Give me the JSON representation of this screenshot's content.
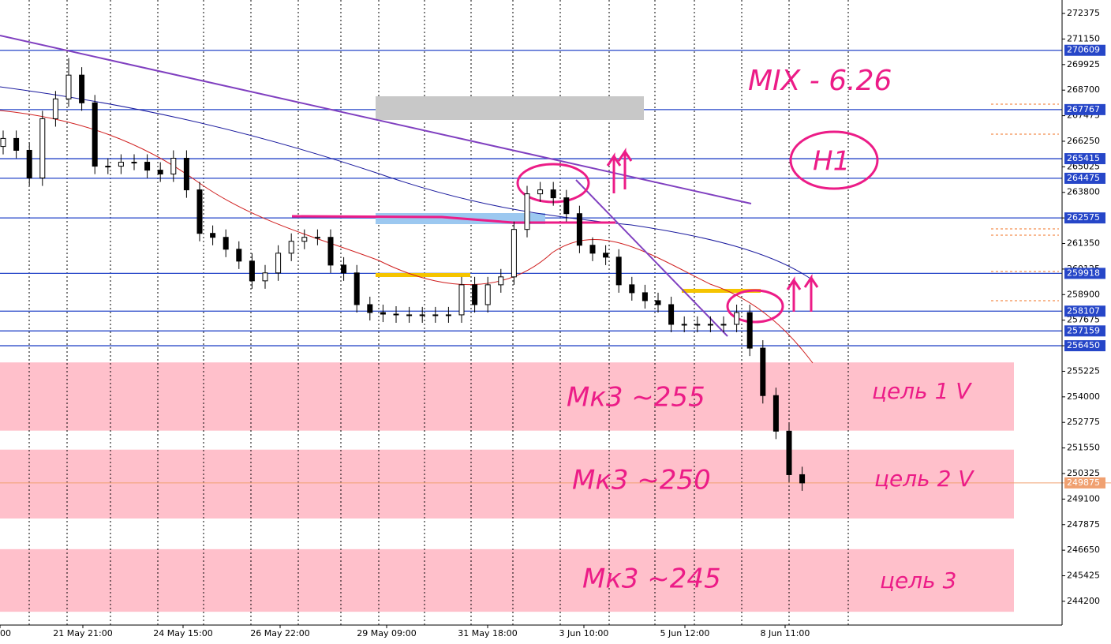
{
  "chart_data": {
    "type": "candlestick",
    "ylim": [
      243062,
      273020
    ],
    "yticks": [
      272375,
      271150,
      269925,
      268700,
      267475,
      266250,
      265025,
      263800,
      262575,
      261350,
      260125,
      258900,
      257675,
      256450,
      255225,
      254000,
      252775,
      251550,
      250325,
      249100,
      247875,
      246650,
      245425,
      244200
    ],
    "x_labels": [
      "00",
      "21 May 21:00",
      "24 May 15:00",
      "26 May 22:00",
      "29 May 09:00",
      "31 May 18:00",
      "3 Jun 10:00",
      "5 Jun 12:00",
      "8 Jun 11:00"
    ],
    "levels": [
      270609,
      267767,
      265415,
      264475,
      262575,
      259918,
      258107,
      257159,
      256450
    ],
    "level_color": "#2646c8",
    "last_price": 249875,
    "last_color": "#f0a070",
    "up_color": "#ffffff",
    "down_color": "#000000",
    "zones": [
      [
        255650,
        252380
      ],
      [
        251470,
        248170
      ],
      [
        246700,
        243700
      ]
    ],
    "zone_color": "#ffc0cb",
    "annotations": [
      "MIX - 6.26",
      "H1",
      "Мк3 ~255",
      "Мк3 ~250",
      "Мк3 ~245",
      "цель 1 V",
      "цель 2 V",
      "цель 3"
    ],
    "candles": [
      [
        266000,
        266765,
        265620,
        266385
      ],
      [
        266385,
        266765,
        265435,
        265815
      ],
      [
        265815,
        266195,
        264110,
        264490
      ],
      [
        264490,
        267710,
        264110,
        267330
      ],
      [
        267330,
        268660,
        266950,
        268280
      ],
      [
        268280,
        270230,
        267900,
        269420
      ],
      [
        269420,
        269800,
        267710,
        268090
      ],
      [
        268090,
        268470,
        264675,
        265055
      ],
      [
        265055,
        265435,
        264675,
        265055
      ],
      [
        265055,
        265625,
        264675,
        265245
      ],
      [
        265245,
        265625,
        264865,
        265245
      ],
      [
        265245,
        265625,
        264485,
        264865
      ],
      [
        264865,
        265245,
        264300,
        264680
      ],
      [
        264680,
        265815,
        264300,
        265435
      ],
      [
        265435,
        265815,
        263540,
        263920
      ],
      [
        263920,
        264300,
        261455,
        261835
      ],
      [
        261835,
        262215,
        261265,
        261645
      ],
      [
        261645,
        262025,
        260695,
        261075
      ],
      [
        261075,
        261455,
        260125,
        260505
      ],
      [
        260505,
        260885,
        259180,
        259560
      ],
      [
        259560,
        260320,
        259180,
        259940
      ],
      [
        259940,
        261265,
        259560,
        260885
      ],
      [
        260885,
        261835,
        260505,
        261455
      ],
      [
        261455,
        262025,
        261075,
        261645
      ],
      [
        261645,
        262025,
        261265,
        261645
      ],
      [
        261645,
        262025,
        259935,
        260315
      ],
      [
        260315,
        260695,
        259560,
        259940
      ],
      [
        259940,
        260320,
        258040,
        258420
      ],
      [
        258420,
        258800,
        257660,
        258040
      ],
      [
        258040,
        258420,
        257585,
        257965
      ],
      [
        257965,
        258345,
        257550,
        257930
      ],
      [
        257930,
        258310,
        257550,
        257930
      ],
      [
        257930,
        258310,
        257550,
        257930
      ],
      [
        257930,
        258310,
        257550,
        257930
      ],
      [
        257930,
        258310,
        257550,
        257930
      ],
      [
        257930,
        259750,
        257550,
        259370
      ],
      [
        259370,
        259750,
        258040,
        258420
      ],
      [
        258420,
        259750,
        258040,
        259370
      ],
      [
        259370,
        260130,
        258990,
        259750
      ],
      [
        259750,
        262405,
        259370,
        262025
      ],
      [
        262025,
        264110,
        261645,
        263730
      ],
      [
        263730,
        264300,
        263350,
        263920
      ],
      [
        263920,
        264300,
        263160,
        263540
      ],
      [
        263540,
        263920,
        262400,
        262780
      ],
      [
        262780,
        263160,
        260885,
        261265
      ],
      [
        261265,
        261645,
        260505,
        260885
      ],
      [
        260885,
        261265,
        260315,
        260695
      ],
      [
        260695,
        261075,
        258990,
        259370
      ],
      [
        259370,
        259750,
        258610,
        258990
      ],
      [
        258990,
        259370,
        258230,
        258610
      ],
      [
        258610,
        258990,
        258040,
        258420
      ],
      [
        258420,
        258800,
        257095,
        257475
      ],
      [
        257475,
        257855,
        257095,
        257475
      ],
      [
        257475,
        257855,
        257095,
        257475
      ],
      [
        257475,
        257855,
        257095,
        257475
      ],
      [
        257475,
        257855,
        257095,
        257475
      ],
      [
        257475,
        258420,
        257095,
        258040
      ],
      [
        258040,
        258420,
        255955,
        256335
      ],
      [
        256335,
        256715,
        253680,
        254060
      ],
      [
        254060,
        254440,
        251975,
        252355
      ],
      [
        252355,
        252735,
        249890,
        250270
      ],
      [
        250270,
        250650,
        249495,
        249875
      ]
    ]
  }
}
